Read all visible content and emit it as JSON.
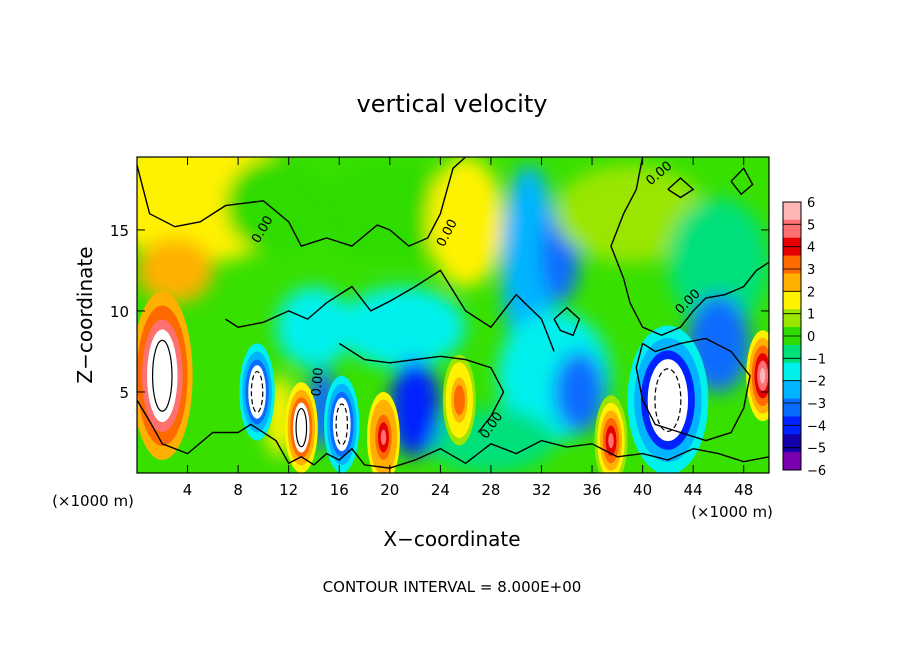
{
  "chart_data": {
    "type": "heatmap",
    "title": "vertical velocity",
    "xlabel": "X−coordinate",
    "ylabel": "Z−coordinate",
    "x_unit_left": "(×1000 m)",
    "x_unit_right": "(×1000 m)",
    "footer": "CONTOUR INTERVAL = 8.000E+00",
    "xlim": [
      0,
      50
    ],
    "ylim": [
      0,
      19.5
    ],
    "x_ticks": [
      4,
      8,
      12,
      16,
      20,
      24,
      28,
      32,
      36,
      40,
      44,
      48
    ],
    "y_ticks": [
      5,
      10,
      15
    ],
    "colorbar": {
      "min": -6,
      "max": 6,
      "ticks": [
        "6",
        "5",
        "4",
        "3",
        "2",
        "1",
        "0",
        "−1",
        "−2",
        "−3",
        "−4",
        "−5",
        "−6"
      ],
      "colors": [
        "#7a00b0",
        "#1400a8",
        "#0022ff",
        "#0a6cff",
        "#00b4ff",
        "#00f0ee",
        "#00e07a",
        "#2fdc00",
        "#9ae600",
        "#fff200",
        "#ffb000",
        "#ff6a00",
        "#e60000",
        "#ff7070",
        "#ffb6b6"
      ]
    },
    "contour_labels": [
      "0.00",
      "0.00",
      "0.00",
      "0.00",
      "0.00",
      "0.00"
    ],
    "features": [
      {
        "x": 2,
        "z": 6,
        "w": 8.0,
        "kind": "updraft-max"
      },
      {
        "x": 9.5,
        "z": 5,
        "w": -6.5,
        "kind": "downdraft"
      },
      {
        "x": 13,
        "z": 2.8,
        "w": 6.5,
        "kind": "updraft"
      },
      {
        "x": 16.2,
        "z": 3,
        "w": -6.5,
        "kind": "downdraft"
      },
      {
        "x": 19.5,
        "z": 2.2,
        "w": 5.0,
        "kind": "updraft"
      },
      {
        "x": 25.5,
        "z": 4.5,
        "w": 3.5,
        "kind": "updraft"
      },
      {
        "x": 37.5,
        "z": 2,
        "w": 4.5,
        "kind": "updraft"
      },
      {
        "x": 42,
        "z": 4.5,
        "w": -7.0,
        "kind": "downdraft-min"
      },
      {
        "x": 49.5,
        "z": 6,
        "w": 6.0,
        "kind": "updraft"
      }
    ]
  }
}
